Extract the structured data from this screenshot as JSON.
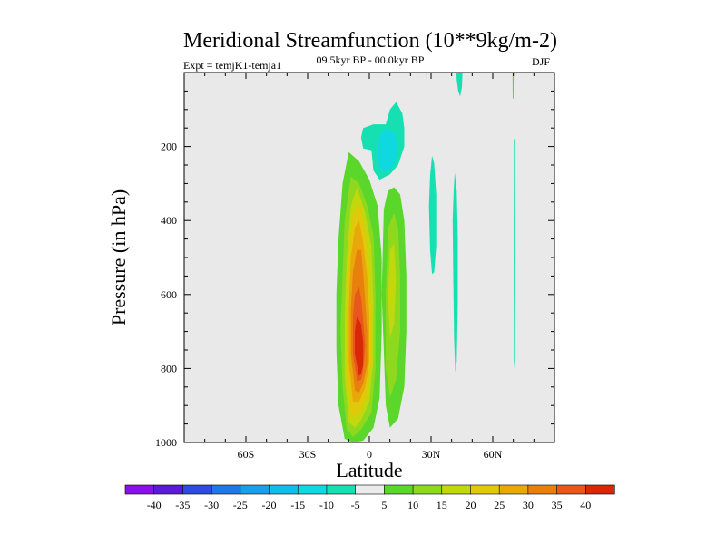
{
  "chart_data": {
    "type": "heatmap",
    "title": "Meridional Streamfunction (10**9kg/m-2)",
    "experiment": "Expt = temjK1-temja1",
    "period": "09.5kyr BP - 00.0kyr BP",
    "season": "DJF",
    "xlabel": "Latitude",
    "ylabel": "Pressure (in hPa)",
    "xlim": [
      -90,
      90
    ],
    "ylim": [
      0,
      1000
    ],
    "x_ticks": [
      {
        "value": -60,
        "label": "60S"
      },
      {
        "value": -30,
        "label": "30S"
      },
      {
        "value": 0,
        "label": "0"
      },
      {
        "value": 30,
        "label": "30N"
      },
      {
        "value": 60,
        "label": "60N"
      }
    ],
    "y_ticks": [
      {
        "value": 200,
        "label": "200"
      },
      {
        "value": 400,
        "label": "400"
      },
      {
        "value": 600,
        "label": "600"
      },
      {
        "value": 800,
        "label": "800"
      },
      {
        "value": 1000,
        "label": "1000"
      }
    ],
    "levels": [
      -40,
      -35,
      -30,
      -25,
      -20,
      -15,
      -10,
      -5,
      5,
      10,
      15,
      20,
      25,
      30,
      35,
      40
    ],
    "colorbar_colors": [
      "#8a10e8",
      "#5a1ad6",
      "#2f4be0",
      "#1f78e4",
      "#1c9ee8",
      "#13bde8",
      "#10d8e0",
      "#16e0b2",
      "#ebebeb",
      "#5bd62a",
      "#8ed81e",
      "#c0d80c",
      "#e0c80a",
      "#e8a80a",
      "#e8800e",
      "#e8581c",
      "#d82808"
    ],
    "features": [
      {
        "name": "positive-cell-level-5",
        "color": "#5bd62a",
        "points": [
          [
            -12,
            990
          ],
          [
            -15,
            900
          ],
          [
            -16,
            750
          ],
          [
            -16,
            600
          ],
          [
            -15,
            450
          ],
          [
            -13,
            300
          ],
          [
            -10,
            215
          ],
          [
            -5,
            240
          ],
          [
            0,
            290
          ],
          [
            4,
            360
          ],
          [
            6,
            500
          ],
          [
            6,
            700
          ],
          [
            5,
            880
          ],
          [
            2,
            960
          ],
          [
            -3,
            995
          ],
          [
            -8,
            1000
          ]
        ]
      },
      {
        "name": "positive-cell-level-5-north",
        "color": "#5bd62a",
        "points": [
          [
            7,
            370
          ],
          [
            9,
            320
          ],
          [
            12,
            310
          ],
          [
            15,
            330
          ],
          [
            17,
            400
          ],
          [
            18,
            550
          ],
          [
            18,
            700
          ],
          [
            17,
            850
          ],
          [
            14,
            935
          ],
          [
            10,
            960
          ],
          [
            8,
            900
          ],
          [
            7,
            750
          ],
          [
            6,
            600
          ]
        ]
      },
      {
        "name": "positive-cell-level-10",
        "color": "#8ed81e",
        "points": [
          [
            -11,
            965
          ],
          [
            -13,
            850
          ],
          [
            -14,
            700
          ],
          [
            -13,
            550
          ],
          [
            -12,
            400
          ],
          [
            -9,
            280
          ],
          [
            -5,
            300
          ],
          [
            -1,
            360
          ],
          [
            2,
            440
          ],
          [
            3,
            600
          ],
          [
            3,
            800
          ],
          [
            1,
            920
          ],
          [
            -4,
            965
          ],
          [
            -8,
            985
          ]
        ]
      },
      {
        "name": "positive-cell-level-10-north",
        "color": "#8ed81e",
        "points": [
          [
            9,
            420
          ],
          [
            12,
            380
          ],
          [
            14,
            420
          ],
          [
            15,
            550
          ],
          [
            15,
            700
          ],
          [
            13,
            830
          ],
          [
            10,
            880
          ],
          [
            8,
            800
          ],
          [
            8,
            600
          ]
        ]
      },
      {
        "name": "positive-cell-level-15",
        "color": "#c0d80c",
        "points": [
          [
            -10,
            945
          ],
          [
            -12,
            820
          ],
          [
            -12,
            660
          ],
          [
            -11,
            500
          ],
          [
            -9,
            360
          ],
          [
            -6,
            310
          ],
          [
            -2,
            380
          ],
          [
            1,
            470
          ],
          [
            2,
            620
          ],
          [
            2,
            780
          ],
          [
            0,
            890
          ],
          [
            -4,
            940
          ],
          [
            -7,
            960
          ]
        ]
      },
      {
        "name": "positive-cell-level-15-north",
        "color": "#c0d80c",
        "points": [
          [
            10,
            480
          ],
          [
            12,
            460
          ],
          [
            13,
            560
          ],
          [
            12,
            680
          ],
          [
            10,
            720
          ],
          [
            9,
            600
          ]
        ]
      },
      {
        "name": "positive-cell-level-20",
        "color": "#e0c80a",
        "points": [
          [
            -9,
            920
          ],
          [
            -11,
            800
          ],
          [
            -11,
            640
          ],
          [
            -10,
            480
          ],
          [
            -8,
            380
          ],
          [
            -5,
            350
          ],
          [
            -2,
            420
          ],
          [
            0,
            520
          ],
          [
            1,
            650
          ],
          [
            1,
            780
          ],
          [
            -1,
            870
          ],
          [
            -4,
            915
          ],
          [
            -7,
            935
          ]
        ]
      },
      {
        "name": "positive-cell-level-25",
        "color": "#e8a80a",
        "points": [
          [
            -8,
            890
          ],
          [
            -10,
            780
          ],
          [
            -10,
            640
          ],
          [
            -9,
            500
          ],
          [
            -7,
            420
          ],
          [
            -5,
            400
          ],
          [
            -3,
            460
          ],
          [
            -1,
            550
          ],
          [
            0,
            660
          ],
          [
            0,
            780
          ],
          [
            -2,
            850
          ],
          [
            -5,
            890
          ]
        ]
      },
      {
        "name": "positive-cell-level-30",
        "color": "#e8800e",
        "points": [
          [
            -7,
            860
          ],
          [
            -9,
            760
          ],
          [
            -9,
            640
          ],
          [
            -8,
            540
          ],
          [
            -6,
            480
          ],
          [
            -4,
            480
          ],
          [
            -3,
            540
          ],
          [
            -2,
            620
          ],
          [
            -1,
            700
          ],
          [
            -1,
            790
          ],
          [
            -3,
            840
          ],
          [
            -5,
            865
          ]
        ]
      },
      {
        "name": "positive-cell-level-35",
        "color": "#e8581c",
        "points": [
          [
            -6,
            835
          ],
          [
            -8,
            760
          ],
          [
            -8,
            660
          ],
          [
            -7,
            600
          ],
          [
            -5,
            580
          ],
          [
            -4,
            610
          ],
          [
            -3,
            670
          ],
          [
            -2,
            740
          ],
          [
            -3,
            800
          ],
          [
            -4,
            830
          ]
        ]
      },
      {
        "name": "positive-cell-level-40",
        "color": "#d82808",
        "points": [
          [
            -5,
            820
          ],
          [
            -7,
            760
          ],
          [
            -7,
            700
          ],
          [
            -6,
            660
          ],
          [
            -4,
            680
          ],
          [
            -3,
            730
          ],
          [
            -3,
            790
          ],
          [
            -4,
            815
          ]
        ]
      },
      {
        "name": "negative-cell-level-5",
        "color": "#16e0b2",
        "points": [
          [
            -4,
            175
          ],
          [
            -3,
            150
          ],
          [
            2,
            140
          ],
          [
            8,
            140
          ],
          [
            10,
            100
          ],
          [
            13,
            80
          ],
          [
            16,
            110
          ],
          [
            17,
            150
          ],
          [
            17,
            200
          ],
          [
            14,
            250
          ],
          [
            10,
            275
          ],
          [
            5,
            290
          ],
          [
            2,
            265
          ],
          [
            1,
            210
          ],
          [
            -3,
            205
          ]
        ]
      },
      {
        "name": "negative-cell-level-10",
        "color": "#10d8e0",
        "points": [
          [
            4,
            220
          ],
          [
            5,
            170
          ],
          [
            8,
            150
          ],
          [
            12,
            160
          ],
          [
            14,
            200
          ],
          [
            12,
            250
          ],
          [
            8,
            270
          ],
          [
            5,
            260
          ]
        ]
      },
      {
        "name": "negative-band-28n",
        "color": "#16e0b2",
        "points": [
          [
            29,
            360
          ],
          [
            29.5,
            280
          ],
          [
            30.5,
            225
          ],
          [
            31.5,
            245
          ],
          [
            32.5,
            330
          ],
          [
            32.5,
            470
          ],
          [
            31.5,
            540
          ],
          [
            30.5,
            545
          ],
          [
            29.5,
            480
          ]
        ]
      },
      {
        "name": "negative-band-42n",
        "color": "#16e0b2",
        "points": [
          [
            40.5,
            400
          ],
          [
            41,
            320
          ],
          [
            41.5,
            270
          ],
          [
            42.5,
            320
          ],
          [
            43,
            450
          ],
          [
            43,
            620
          ],
          [
            42.5,
            780
          ],
          [
            41.8,
            810
          ],
          [
            41.2,
            720
          ],
          [
            40.8,
            560
          ]
        ]
      },
      {
        "name": "negative-top-44n",
        "color": "#16e0b2",
        "points": [
          [
            42.3,
            0
          ],
          [
            45.3,
            0
          ],
          [
            45.0,
            40
          ],
          [
            44.1,
            65
          ],
          [
            43.2,
            50
          ],
          [
            42.5,
            20
          ]
        ]
      },
      {
        "name": "positive-sliver-28n",
        "color": "#5bd62a",
        "points": [
          [
            27.7,
            0
          ],
          [
            28.2,
            0
          ],
          [
            28.1,
            25
          ],
          [
            27.8,
            25
          ]
        ]
      },
      {
        "name": "positive-line-70n",
        "color": "#5bd62a",
        "points": [
          [
            69.6,
            0
          ],
          [
            70.2,
            0
          ],
          [
            70.1,
            70
          ],
          [
            69.7,
            70
          ]
        ]
      },
      {
        "name": "negative-line-71n",
        "color": "#16e0b2",
        "points": [
          [
            70.3,
            180
          ],
          [
            70.7,
            180
          ],
          [
            70.8,
            500
          ],
          [
            70.6,
            800
          ],
          [
            70.3,
            780
          ],
          [
            70.2,
            500
          ]
        ]
      }
    ]
  }
}
